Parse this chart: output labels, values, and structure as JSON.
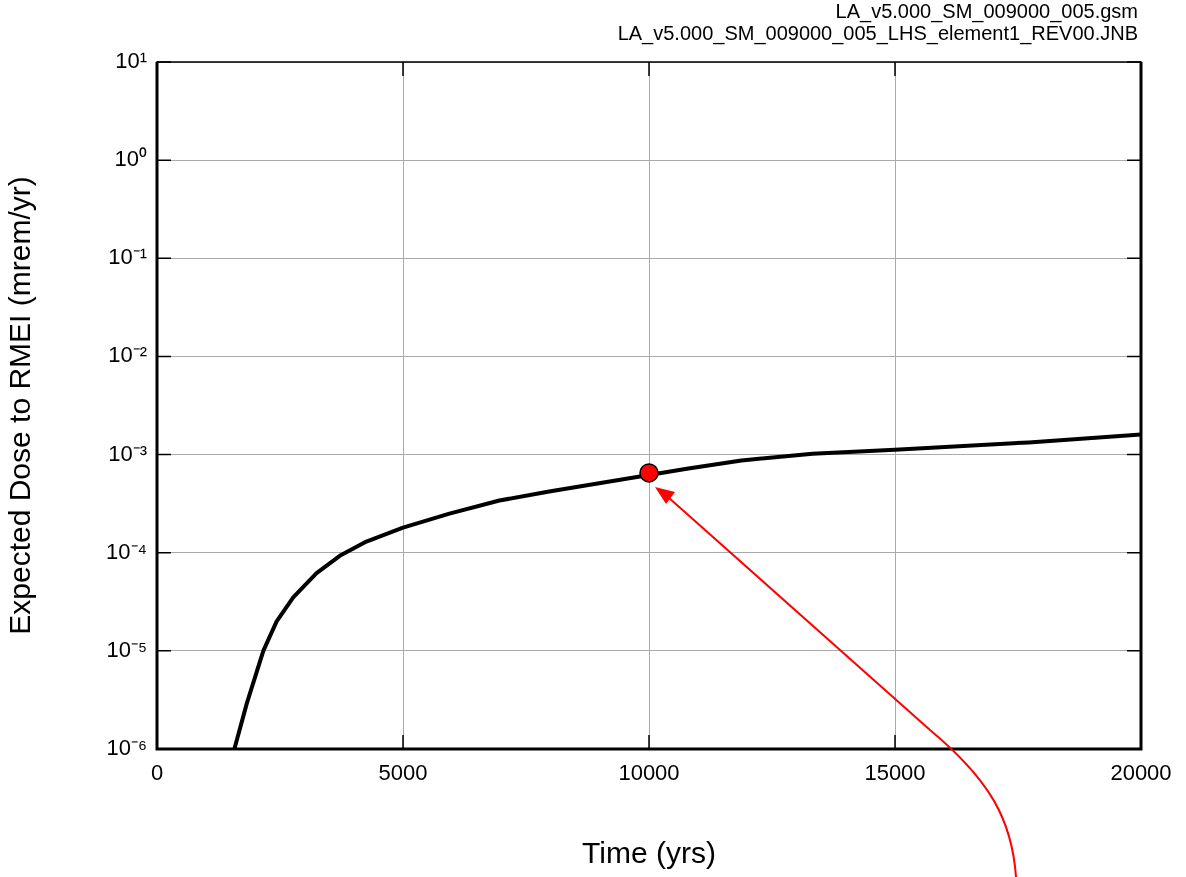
{
  "chart_data": {
    "type": "line",
    "xlabel": "Time (yrs)",
    "ylabel": "Expected Dose to RMEI (mrem/yr)",
    "annotations": [
      "LA_v5.000_SM_009000_005.gsm",
      "LA_v5.000_SM_009000_005_LHS_element1_REV00.JNB"
    ],
    "series": [
      {
        "color": "#000000",
        "marker": "none",
        "x": [
          1573,
          1824,
          2161,
          2432,
          2769,
          3243,
          3715,
          4256,
          5000,
          5944,
          6958,
          7971,
          8985,
          10800,
          11880,
          13323,
          15000,
          17720,
          20000
        ],
        "values": [
          1e-06,
          2.9e-06,
          1e-05,
          2e-05,
          3.5e-05,
          6.2e-05,
          9.3e-05,
          0.00013,
          0.00018,
          0.00025,
          0.00034,
          0.00042,
          0.00051,
          0.00072,
          0.00087,
          0.00102,
          0.00112,
          0.00133,
          0.0016
        ]
      },
      {
        "type": "scatter",
        "color": "#ff0000",
        "marker": "circle",
        "x": [
          10000
        ],
        "values": [
          0.00065
        ]
      }
    ],
    "log": "y",
    "grid": true,
    "legend": false,
    "xlim": [
      0,
      20000
    ],
    "xticks": [
      0,
      5000,
      10000,
      15000,
      20000
    ],
    "ylim": [
      1e-06,
      10
    ],
    "yticks": [
      {
        "value": 1e-06,
        "label": "10⁻⁶"
      },
      {
        "value": 1e-05,
        "label": "10⁻⁵"
      },
      {
        "value": 0.0001,
        "label": "10⁻⁴"
      },
      {
        "value": 0.001,
        "label": "10⁻³"
      },
      {
        "value": 0.01,
        "label": "10⁻²"
      },
      {
        "value": 0.1,
        "label": "10⁻¹"
      },
      {
        "value": 1,
        "label": "10⁰"
      },
      {
        "value": 10,
        "label": "10¹"
      }
    ]
  }
}
